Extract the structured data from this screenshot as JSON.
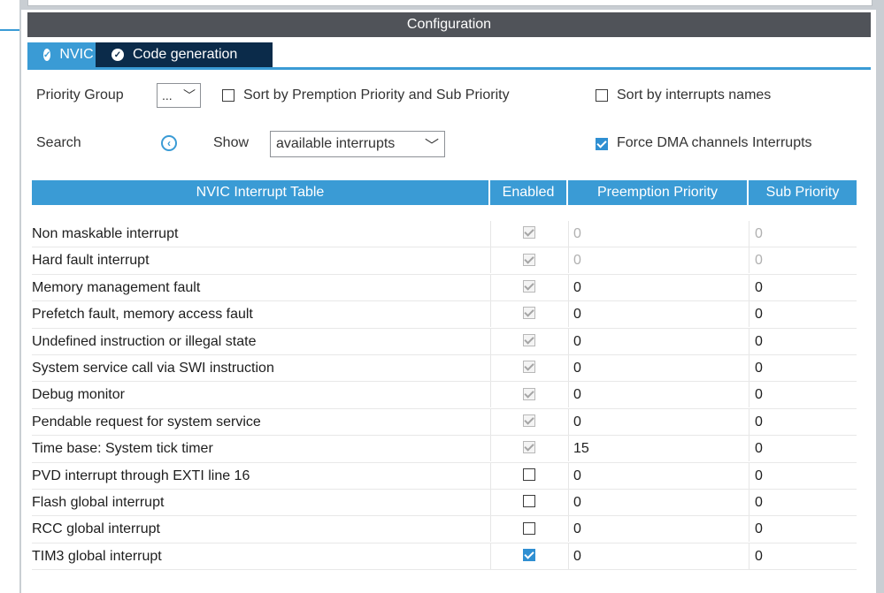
{
  "panel_title": "Configuration",
  "tabs": [
    {
      "label": "NVIC",
      "active": true
    },
    {
      "label": "Code generation",
      "active": false
    }
  ],
  "toolbar": {
    "priority_group_label": "Priority Group",
    "priority_group_value": "...",
    "sort_premption_label": "Sort by Premption Priority and Sub Priority",
    "sort_premption_checked": false,
    "sort_names_label": "Sort by interrupts names",
    "sort_names_checked": false,
    "search_label": "Search",
    "show_label": "Show",
    "show_value": "available interrupts",
    "force_dma_label": "Force DMA channels Interrupts",
    "force_dma_checked": true
  },
  "table": {
    "headers": [
      "NVIC Interrupt Table",
      "Enabled",
      "Preemption Priority",
      "Sub Priority"
    ],
    "rows": [
      {
        "name": "Non maskable interrupt",
        "enabled": "locked",
        "preemption": "0",
        "sub": "0",
        "muted": true
      },
      {
        "name": "Hard fault interrupt",
        "enabled": "locked",
        "preemption": "0",
        "sub": "0",
        "muted": true
      },
      {
        "name": "Memory management fault",
        "enabled": "locked",
        "preemption": "0",
        "sub": "0",
        "muted": false
      },
      {
        "name": "Prefetch fault, memory access fault",
        "enabled": "locked",
        "preemption": "0",
        "sub": "0",
        "muted": false
      },
      {
        "name": "Undefined instruction or illegal state",
        "enabled": "locked",
        "preemption": "0",
        "sub": "0",
        "muted": false
      },
      {
        "name": "System service call via SWI instruction",
        "enabled": "locked",
        "preemption": "0",
        "sub": "0",
        "muted": false
      },
      {
        "name": "Debug monitor",
        "enabled": "locked",
        "preemption": "0",
        "sub": "0",
        "muted": false
      },
      {
        "name": "Pendable request for system service",
        "enabled": "locked",
        "preemption": "0",
        "sub": "0",
        "muted": false
      },
      {
        "name": "Time base: System tick timer",
        "enabled": "locked",
        "preemption": "15",
        "sub": "0",
        "muted": false
      },
      {
        "name": "PVD interrupt through EXTI line 16",
        "enabled": "off",
        "preemption": "0",
        "sub": "0",
        "muted": false
      },
      {
        "name": "Flash global interrupt",
        "enabled": "off",
        "preemption": "0",
        "sub": "0",
        "muted": false
      },
      {
        "name": "RCC global interrupt",
        "enabled": "off",
        "preemption": "0",
        "sub": "0",
        "muted": false
      },
      {
        "name": "TIM3 global interrupt",
        "enabled": "on",
        "preemption": "0",
        "sub": "0",
        "muted": false
      }
    ]
  },
  "colors": {
    "accent": "#3a9bd5",
    "titlebar": "#505359",
    "tab_inactive": "#0b2b4a",
    "checkbox_on": "#2f8fd2"
  },
  "icons": {
    "tab_check": "check-circle-icon",
    "search_back": "circle-chevron-left-icon",
    "dropdown": "chevron-down-icon"
  }
}
